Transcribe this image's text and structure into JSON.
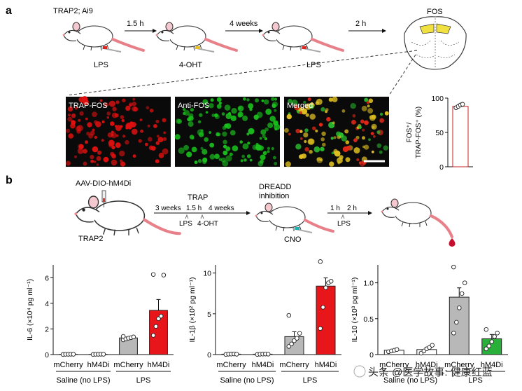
{
  "panel_a": {
    "letter": "a",
    "mouse_label": "TRAP2; Ai9",
    "steps": [
      {
        "time": "1.5 h",
        "injection": "LPS"
      },
      {
        "time": "4 weeks",
        "injection": "4-OHT"
      },
      {
        "time": "2 h",
        "injection": "LPS"
      }
    ],
    "brain_label": "FOS",
    "micro_labels": [
      "TRAP-FOS",
      "Anti-FOS",
      "Merged"
    ],
    "micro_colors": [
      "#e01010",
      "#19c01c",
      "#d9c020"
    ],
    "bar_chart": {
      "ylabel_line1": "FOS⁺/",
      "ylabel_line2": "TRAP-FOS⁺ (%)",
      "yticks": [
        "0",
        "50",
        "100"
      ]
    }
  },
  "panel_b": {
    "letter": "b",
    "virus_label": "AAV-DIO-hM4Di",
    "mouse_label": "TRAP2",
    "trap_label": "TRAP",
    "dreadd_line1": "DREADD",
    "dreadd_line2": "inhibition",
    "cno_label": "CNO",
    "timeline1": {
      "t1": "3 weeks",
      "t2": "1.5 h",
      "t3": "4 weeks",
      "m1": "LPS",
      "m2": "4-OHT"
    },
    "timeline2": {
      "t1": "1 h",
      "t2": "2 h",
      "m1": "LPS"
    }
  },
  "group_labels": {
    "mcherry": "mCherry",
    "hm4di": "hM4Di",
    "saline": "Saline (no LPS)",
    "lps": "LPS"
  },
  "watermark": "头条 @医学故事: 健康红蓝",
  "chart_data": [
    {
      "type": "bar",
      "ylabel": "IL-6 (×10⁴ pg ml⁻¹)",
      "ylim": [
        0,
        7
      ],
      "yticks": [
        "0",
        "2",
        "4",
        "6"
      ],
      "ytick_values": [
        0,
        2,
        4,
        6
      ],
      "categories": [
        "mCherry",
        "hM4Di",
        "mCherry",
        "hM4Di"
      ],
      "groups": [
        "Saline (no LPS)",
        "LPS"
      ],
      "values": [
        0.02,
        0.02,
        1.3,
        3.45
      ],
      "errors": [
        0.01,
        0.01,
        0.08,
        0.85
      ],
      "colors": [
        "#ffffff",
        "#ffffff",
        "#b8b8b8",
        "#e8161b"
      ],
      "points": [
        [
          0.01,
          0.02,
          0.02,
          0.03,
          0.02
        ],
        [
          0.01,
          0.02,
          0.02,
          0.03,
          0.02
        ],
        [
          1.15,
          1.22,
          1.28,
          1.32,
          1.38,
          1.42
        ],
        [
          1.5,
          2.2,
          2.8,
          3.0,
          6.2,
          6.25
        ]
      ]
    },
    {
      "type": "bar",
      "ylabel": "IL-1β (×10² pg ml⁻¹)",
      "ylim": [
        0,
        11
      ],
      "yticks": [
        "0",
        "5",
        "10"
      ],
      "ytick_values": [
        0,
        5,
        10
      ],
      "categories": [
        "mCherry",
        "hM4Di",
        "mCherry",
        "hM4Di"
      ],
      "groups": [
        "Saline (no LPS)",
        "LPS"
      ],
      "values": [
        0.05,
        0.05,
        2.2,
        8.4
      ],
      "errors": [
        0.03,
        0.03,
        0.6,
        1.0
      ],
      "colors": [
        "#ffffff",
        "#ffffff",
        "#b8b8b8",
        "#e8161b"
      ],
      "points": [
        [
          0.02,
          0.05,
          0.06,
          0.08,
          0.04
        ],
        [
          0.02,
          0.04,
          0.06,
          0.07,
          0.05
        ],
        [
          1.0,
          1.3,
          1.7,
          2.0,
          2.6,
          4.8
        ],
        [
          3.2,
          5.8,
          8.2,
          8.8,
          9.0,
          11.4
        ]
      ]
    },
    {
      "type": "bar",
      "ylabel": "IL-10 (×10³ pg ml⁻¹)",
      "ylim": [
        0,
        1.25
      ],
      "yticks": [
        "0",
        "0.5",
        "1.0"
      ],
      "ytick_values": [
        0,
        0.5,
        1.0
      ],
      "categories": [
        "mCherry",
        "hM4Di",
        "mCherry",
        "hM4Di"
      ],
      "groups": [
        "Saline (no LPS)",
        "LPS"
      ],
      "values": [
        0.06,
        0.07,
        0.8,
        0.22
      ],
      "errors": [
        0.01,
        0.03,
        0.13,
        0.06
      ],
      "colors": [
        "#ffffff",
        "#ffffff",
        "#b8b8b8",
        "#28b03a"
      ],
      "points": [
        [
          0.04,
          0.05,
          0.06,
          0.07
        ],
        [
          0.02,
          0.05,
          0.08,
          0.1,
          0.13
        ],
        [
          0.3,
          0.45,
          0.65,
          0.85,
          1.0,
          1.22
        ],
        [
          0.08,
          0.12,
          0.18,
          0.25,
          0.3,
          0.35
        ]
      ]
    },
    {
      "type": "bar",
      "ylabel": "FOS⁺/TRAP-FOS⁺ (%)",
      "ylim": [
        0,
        100
      ],
      "yticks": [
        "0",
        "50",
        "100"
      ],
      "ytick_values": [
        0,
        50,
        100
      ],
      "values": [
        88
      ],
      "points": [
        [
          86,
          88,
          90,
          91
        ]
      ]
    }
  ]
}
